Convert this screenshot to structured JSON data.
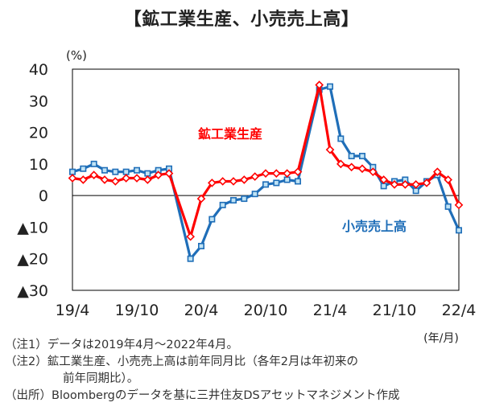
{
  "chart_data": {
    "type": "line",
    "title": "【鉱工業生産、小売売上高】",
    "ylabel": "(%)",
    "xlabel": "(年/月)",
    "ylim": [
      -30,
      40
    ],
    "yticks": [
      40,
      30,
      20,
      10,
      0,
      -10,
      -20,
      -30
    ],
    "ytick_labels": [
      "40",
      "30",
      "20",
      "10",
      "0",
      "▲10",
      "▲20",
      "▲30"
    ],
    "x": [
      "19/4",
      "19/5",
      "19/6",
      "19/7",
      "19/8",
      "19/9",
      "19/10",
      "19/11",
      "19/12",
      "20/1",
      "20/2",
      "20/3",
      "20/4",
      "20/5",
      "20/6",
      "20/7",
      "20/8",
      "20/9",
      "20/10",
      "20/11",
      "20/12",
      "21/1",
      "21/2",
      "21/3",
      "21/4",
      "21/5",
      "21/6",
      "21/7",
      "21/8",
      "21/9",
      "21/10",
      "21/11",
      "21/12",
      "22/1",
      "22/2",
      "22/3",
      "22/4"
    ],
    "xtick_labels": [
      "19/4",
      "19/10",
      "20/4",
      "20/10",
      "21/4",
      "21/10",
      "22/4"
    ],
    "series": [
      {
        "name": "鉱工業生産",
        "color": "#ff0000",
        "marker": "diamond",
        "values": [
          5.5,
          5.0,
          6.5,
          5.0,
          4.5,
          5.5,
          5.5,
          5.0,
          6.5,
          7.0,
          null,
          -13.0,
          -1.0,
          4.0,
          4.5,
          4.5,
          5.0,
          6.0,
          7.0,
          7.0,
          7.0,
          7.5,
          null,
          35.0,
          14.5,
          10.0,
          9.0,
          8.5,
          7.5,
          5.0,
          3.5,
          3.5,
          3.5,
          4.0,
          7.5,
          5.0,
          -3.0
        ]
      },
      {
        "name": "小売売上高",
        "color": "#1f6eb8",
        "marker": "square",
        "values": [
          7.5,
          8.5,
          10.0,
          8.0,
          7.5,
          7.5,
          8.0,
          7.0,
          8.0,
          8.5,
          null,
          -20.0,
          -16.0,
          -7.5,
          -3.0,
          -1.5,
          -1.0,
          0.5,
          3.5,
          4.0,
          5.0,
          4.5,
          null,
          33.5,
          34.5,
          18.0,
          12.5,
          12.5,
          9.0,
          3.0,
          4.5,
          5.0,
          1.5,
          4.5,
          6.5,
          -3.5,
          -11.0
        ]
      }
    ],
    "annotations": [
      {
        "text": "鉱工業生産",
        "series": "鉱工業生産"
      },
      {
        "text": "小売売上高",
        "series": "小売売上高"
      }
    ],
    "grid": false
  },
  "notes": {
    "note1": "（注1）データは2019年4月～2022年4月。",
    "note2a": "（注2）鉱工業生産、小売売上高は前年同月比（各年2月は年初来の",
    "note2b": "前年同期比）。",
    "source": "（出所）Bloombergのデータを基に三井住友DSアセットマネジメント作成"
  }
}
